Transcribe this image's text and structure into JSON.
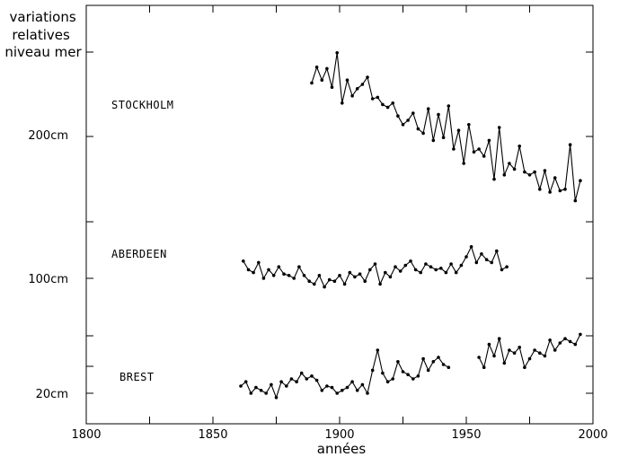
{
  "chart_data": {
    "type": "line",
    "ylabel": [
      "variations",
      "relatives",
      "niveau mer"
    ],
    "xlabel": "années",
    "xlim": [
      1800,
      2000
    ],
    "x_ticks": [
      "1800",
      "1850",
      "1900",
      "1950",
      "2000"
    ],
    "y_ticks": [
      {
        "label": "200cm",
        "value": 200
      },
      {
        "label": "100cm",
        "value": 100
      },
      {
        "label": "20cm",
        "value": 20
      }
    ],
    "series": [
      {
        "name": "STOCKHOLM",
        "years": [
          1889,
          1891,
          1893,
          1895,
          1897,
          1899,
          1901,
          1903,
          1905,
          1907,
          1909,
          1911,
          1913,
          1915,
          1917,
          1919,
          1921,
          1923,
          1925,
          1927,
          1929,
          1931,
          1933,
          1935,
          1937,
          1939,
          1941,
          1943,
          1945,
          1947,
          1949,
          1951,
          1953,
          1955,
          1957,
          1959,
          1961,
          1963,
          1965,
          1967,
          1969,
          1971,
          1973,
          1975,
          1977,
          1979,
          1981,
          1983,
          1985,
          1987,
          1989,
          1991,
          1993,
          1995
        ],
        "values": [
          236,
          247,
          238,
          246,
          233,
          257,
          222,
          238,
          227,
          232,
          235,
          240,
          225,
          226,
          221,
          219,
          222,
          213,
          207,
          210,
          215,
          204,
          201,
          218,
          196,
          214,
          198,
          220,
          190,
          203,
          180,
          207,
          188,
          190,
          185,
          196,
          169,
          205,
          172,
          180,
          176,
          192,
          174,
          172,
          174,
          162,
          175,
          160,
          170,
          161,
          162,
          193,
          154,
          168
        ]
      },
      {
        "name": "ABERDEEN",
        "years": [
          1862,
          1864,
          1866,
          1868,
          1870,
          1872,
          1874,
          1876,
          1878,
          1880,
          1882,
          1884,
          1886,
          1888,
          1890,
          1892,
          1894,
          1896,
          1898,
          1900,
          1902,
          1904,
          1906,
          1908,
          1910,
          1912,
          1914,
          1916,
          1918,
          1920,
          1922,
          1924,
          1926,
          1928,
          1930,
          1932,
          1934,
          1936,
          1938,
          1940,
          1942,
          1944,
          1946,
          1948,
          1950,
          1952,
          1954,
          1956,
          1958,
          1960,
          1962,
          1964,
          1966
        ],
        "values": [
          112,
          106,
          104,
          111,
          100,
          106,
          102,
          108,
          103,
          102,
          100,
          108,
          102,
          98,
          96,
          102,
          94,
          99,
          98,
          102,
          96,
          104,
          101,
          103,
          98,
          106,
          110,
          96,
          104,
          101,
          108,
          105,
          109,
          112,
          106,
          104,
          110,
          108,
          106,
          107,
          104,
          110,
          104,
          109,
          115,
          122,
          111,
          117,
          113,
          111,
          119,
          106,
          108
        ]
      },
      {
        "name": "BREST",
        "years": [
          1861,
          1863,
          1865,
          1867,
          1869,
          1871,
          1873,
          1875,
          1877,
          1879,
          1881,
          1883,
          1885,
          1887,
          1889,
          1891,
          1893,
          1895,
          1897,
          1899,
          1901,
          1903,
          1905,
          1907,
          1909,
          1911,
          1913,
          1915,
          1917,
          1919,
          1921,
          1923,
          1925,
          1927,
          1929,
          1931,
          1933,
          1935,
          1937,
          1939,
          1941,
          1943,
          1955,
          1957,
          1959,
          1961,
          1963,
          1965,
          1967,
          1969,
          1971,
          1973,
          1975,
          1977,
          1979,
          1981,
          1983,
          1985,
          1987,
          1989,
          1991,
          1993,
          1995
        ],
        "values": [
          25,
          28,
          20,
          24,
          22,
          20,
          26,
          17,
          28,
          25,
          30,
          28,
          34,
          30,
          32,
          29,
          22,
          25,
          24,
          20,
          22,
          24,
          28,
          22,
          26,
          20,
          36,
          50,
          34,
          28,
          30,
          42,
          35,
          33,
          30,
          32,
          44,
          36,
          42,
          45,
          40,
          38,
          45,
          38,
          54,
          46,
          58,
          41,
          50,
          48,
          52,
          38,
          44,
          50,
          48,
          46,
          57,
          50,
          55,
          58,
          56,
          54,
          61
        ]
      }
    ]
  }
}
